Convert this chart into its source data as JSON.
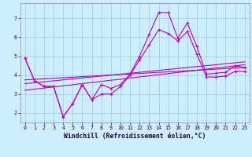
{
  "xlabel": "Windchill (Refroidissement éolien,°C)",
  "bg_color": "#cceeff",
  "grid_color": "#99cccc",
  "line_color": "#bb00bb",
  "x": [
    0,
    1,
    2,
    3,
    4,
    5,
    6,
    7,
    8,
    9,
    10,
    11,
    12,
    13,
    14,
    15,
    16,
    17,
    18,
    19,
    20,
    21,
    22,
    23
  ],
  "y_main": [
    4.9,
    3.7,
    3.4,
    3.4,
    1.8,
    2.5,
    3.5,
    2.7,
    3.5,
    3.3,
    3.5,
    4.05,
    5.0,
    6.15,
    7.3,
    7.3,
    5.95,
    6.75,
    5.5,
    4.05,
    4.1,
    4.15,
    4.5,
    4.4
  ],
  "y_low": [
    4.9,
    3.7,
    3.4,
    3.4,
    1.8,
    2.5,
    3.5,
    2.7,
    3.0,
    3.0,
    3.4,
    4.0,
    4.8,
    5.6,
    6.4,
    6.2,
    5.8,
    6.3,
    5.1,
    3.9,
    3.9,
    3.95,
    4.2,
    4.2
  ],
  "trend_lines": [
    [
      [
        0,
        23
      ],
      [
        3.75,
        4.4
      ]
    ],
    [
      [
        0,
        23
      ],
      [
        3.55,
        4.7
      ]
    ],
    [
      [
        0,
        23
      ],
      [
        3.2,
        4.55
      ]
    ]
  ],
  "xlim": [
    -0.5,
    23.5
  ],
  "ylim": [
    1.5,
    7.8
  ],
  "xticks": [
    0,
    1,
    2,
    3,
    4,
    5,
    6,
    7,
    8,
    9,
    10,
    11,
    12,
    13,
    14,
    15,
    16,
    17,
    18,
    19,
    20,
    21,
    22,
    23
  ],
  "yticks": [
    2,
    3,
    4,
    5,
    6,
    7
  ],
  "tick_fontsize": 4.8,
  "xlabel_fontsize": 5.8
}
